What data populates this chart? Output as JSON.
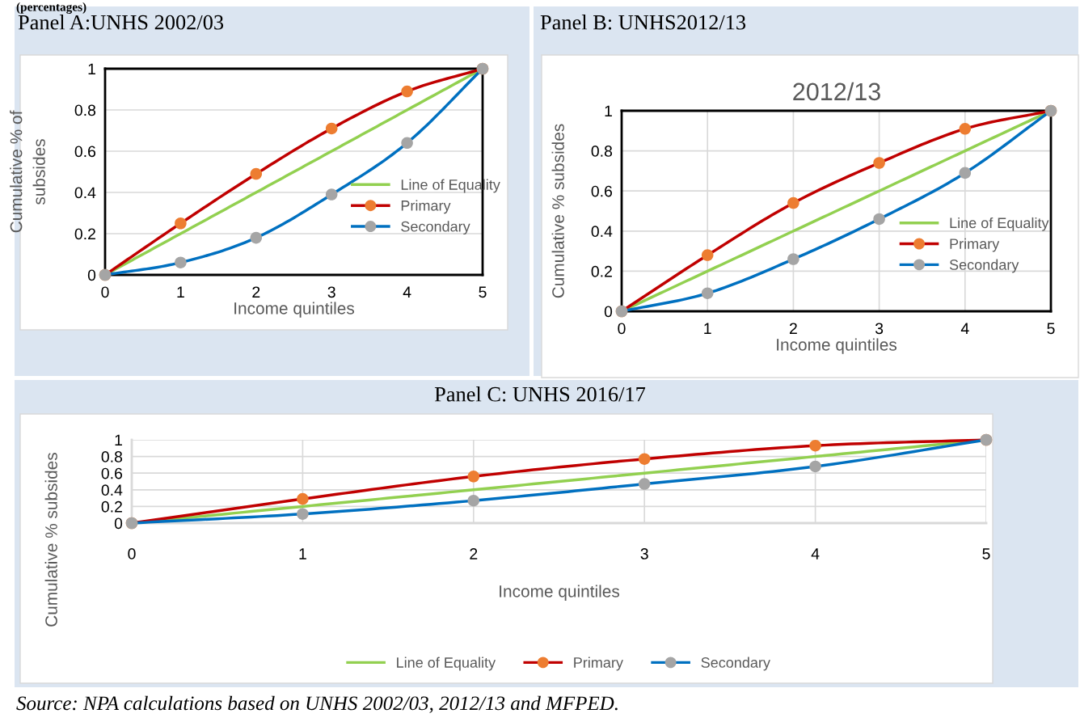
{
  "chart_data": [
    {
      "type": "line",
      "title": "Panel A:UNHS 2002/03",
      "annotations": [
        "(percentages)"
      ],
      "xlabel": "Income quintiles",
      "ylabel": "Cumulative % of\nsubsides",
      "x": [
        0,
        1,
        2,
        3,
        4,
        5
      ],
      "xlim": [
        0,
        5
      ],
      "xticks": [
        0,
        1,
        2,
        3,
        4,
        5
      ],
      "ylim": [
        0,
        1
      ],
      "yticks": [
        0,
        0.2,
        0.4,
        0.6,
        0.8,
        1
      ],
      "grid": "y",
      "legend": "right",
      "series": [
        {
          "name": "Line of Equality",
          "color": "#92d050",
          "marker": "none",
          "values": [
            0,
            0.2,
            0.4,
            0.6,
            0.8,
            1
          ]
        },
        {
          "name": "Primary",
          "color": "#c00000",
          "colors": [
            "#ed7d31",
            "#ed7d31",
            "#ed7d31",
            "#ed7d31",
            "#ed7d31",
            "#ed7d31"
          ],
          "marker": "circle",
          "values": [
            0,
            0.25,
            0.49,
            0.71,
            0.89,
            1
          ]
        },
        {
          "name": "Secondary",
          "color": "#0070c0",
          "colors": [
            "#a5a5a5",
            "#a5a5a5",
            "#a5a5a5",
            "#a5a5a5",
            "#a5a5a5",
            "#a5a5a5"
          ],
          "marker": "circle",
          "values": [
            0,
            0.06,
            0.18,
            0.39,
            0.64,
            1
          ]
        }
      ]
    },
    {
      "type": "line",
      "title": "Panel B: UNHS2012/13",
      "subtitle": "2012/13",
      "xlabel": "Income quintiles",
      "ylabel": "Cumulative % subsides",
      "x": [
        0,
        1,
        2,
        3,
        4,
        5
      ],
      "xlim": [
        0,
        5
      ],
      "xticks": [
        0,
        1,
        2,
        3,
        4,
        5
      ],
      "ylim": [
        0,
        1
      ],
      "yticks": [
        0,
        0.2,
        0.4,
        0.6,
        0.8,
        1
      ],
      "grid": true,
      "legend": "right",
      "series": [
        {
          "name": "Line of Equality",
          "color": "#92d050",
          "marker": "none",
          "values": [
            0,
            0.2,
            0.4,
            0.6,
            0.8,
            1
          ]
        },
        {
          "name": "Primary",
          "color": "#c00000",
          "colors": [
            "#ed7d31",
            "#ed7d31",
            "#ed7d31",
            "#ed7d31",
            "#ed7d31",
            "#ed7d31"
          ],
          "marker": "circle",
          "values": [
            0,
            0.28,
            0.54,
            0.74,
            0.91,
            1
          ]
        },
        {
          "name": "Secondary",
          "color": "#0070c0",
          "colors": [
            "#a5a5a5",
            "#a5a5a5",
            "#a5a5a5",
            "#a5a5a5",
            "#a5a5a5",
            "#a5a5a5"
          ],
          "marker": "circle",
          "values": [
            0,
            0.09,
            0.26,
            0.46,
            0.69,
            1
          ]
        }
      ]
    },
    {
      "type": "line",
      "title": "Panel C: UNHS 2016/17",
      "annotations": [
        "Source: NPA calculations based on UNHS 2002/03, 2012/13 and MFPED."
      ],
      "xlabel": "Income quintiles",
      "ylabel": "Cumulative % subsides",
      "x": [
        0,
        1,
        2,
        3,
        4,
        5
      ],
      "xlim": [
        0,
        5
      ],
      "xticks": [
        0,
        1,
        2,
        3,
        4,
        5
      ],
      "ylim": [
        0,
        1
      ],
      "yticks": [
        0,
        0.2,
        0.4,
        0.6,
        0.8,
        1
      ],
      "grid": true,
      "legend": "bottom",
      "series": [
        {
          "name": "Line of Equality",
          "color": "#92d050",
          "marker": "none",
          "values": [
            0,
            0.2,
            0.4,
            0.6,
            0.8,
            1
          ]
        },
        {
          "name": "Primary",
          "color": "#c00000",
          "colors": [
            "#ed7d31",
            "#ed7d31",
            "#ed7d31",
            "#ed7d31",
            "#ed7d31",
            "#ed7d31"
          ],
          "marker": "circle",
          "values": [
            0,
            0.29,
            0.56,
            0.77,
            0.93,
            1
          ]
        },
        {
          "name": "Secondary",
          "color": "#0070c0",
          "colors": [
            "#a5a5a5",
            "#a5a5a5",
            "#a5a5a5",
            "#a5a5a5",
            "#a5a5a5",
            "#a5a5a5"
          ],
          "marker": "circle",
          "values": [
            0,
            0.11,
            0.27,
            0.47,
            0.68,
            1
          ]
        }
      ]
    }
  ]
}
